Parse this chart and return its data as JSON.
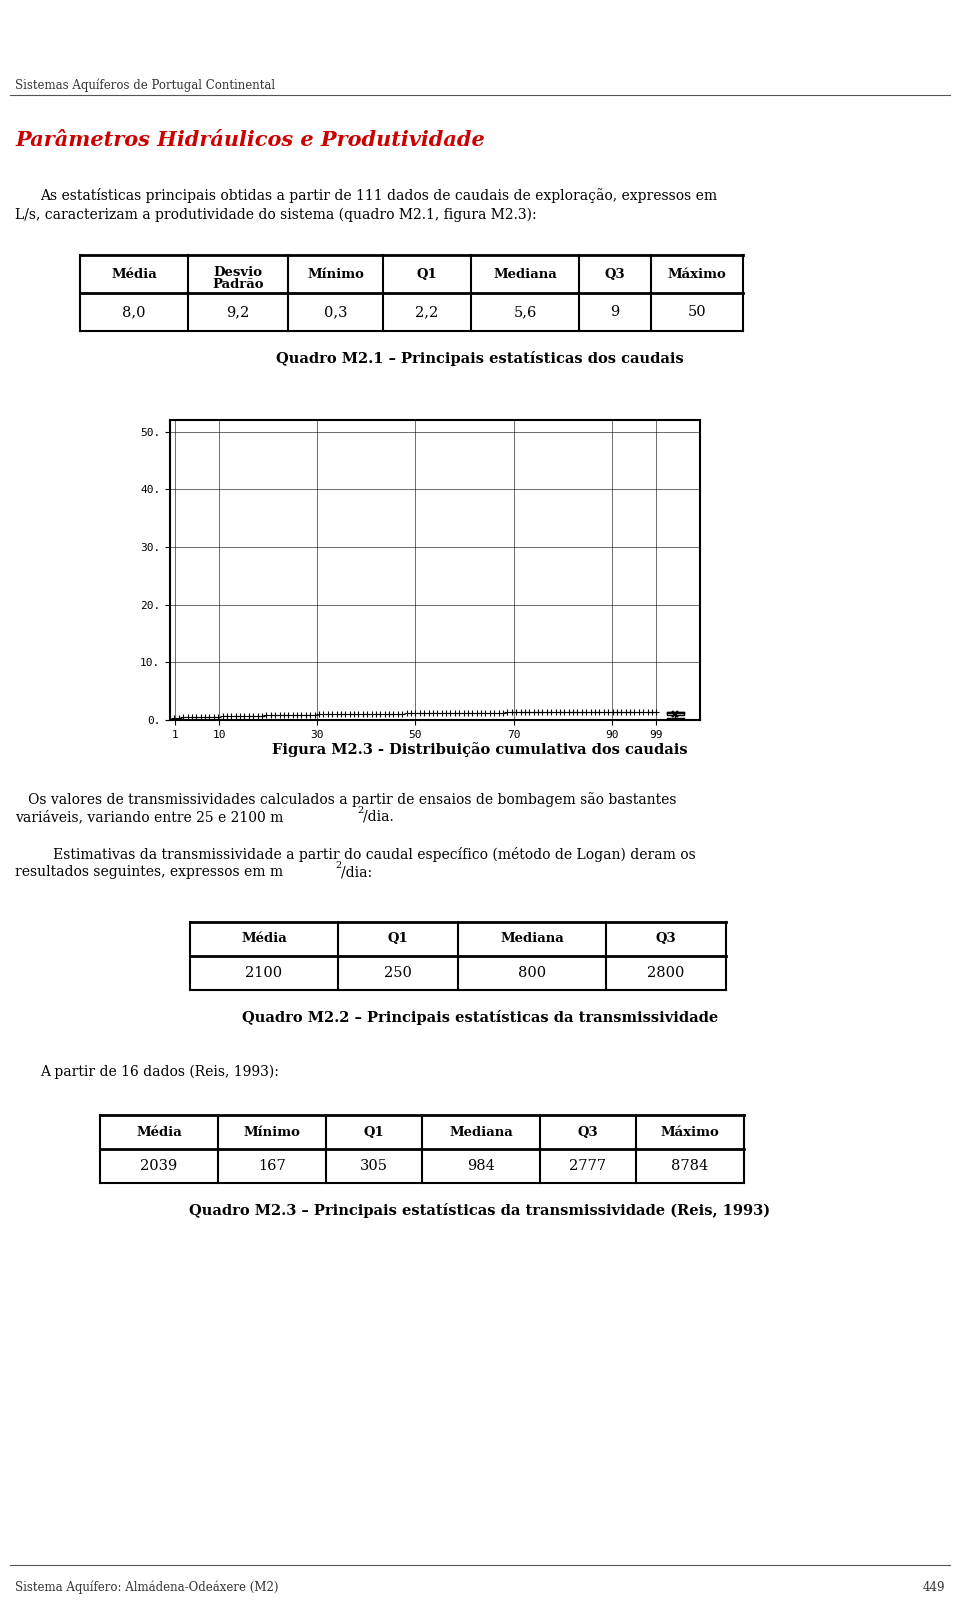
{
  "page_header": "Sistemas Aquíferos de Portugal Continental",
  "page_footer": "Sistema Aquífero: Almádena-Odeáxere (M2)",
  "page_number": "449",
  "title": "Parâmetros Hidráulicos e Produtividade",
  "intro_text1": "As estatísticas principais obtidas a partir de 111 dados de caudais de exploração, expressos em",
  "intro_text2": "L/s, caracterizam a produtividade do sistema (quadro M2.1, figura M2.3):",
  "table1_caption": "Quadro M2.1 – Principais estatísticas dos caudais",
  "table1_headers": [
    "Média",
    "Desvio\nPadrão",
    "Mínimo",
    "Q1",
    "Mediana",
    "Q3",
    "Máximo"
  ],
  "table1_values": [
    "8,0",
    "9,2",
    "0,3",
    "2,2",
    "5,6",
    "9",
    "50"
  ],
  "figure_caption": "Figura M2.3 - Distribuição cumulativa dos caudais",
  "text2_line1": "   Os valores de transmissividades calculados a partir de ensaios de bombagem são bastantes",
  "text2_line2": "variáveis, variando entre 25 e 2100 m",
  "text2_super": "2",
  "text2_end": "/dia.",
  "text3_line1": "   Estimativas da transmissividade a partir do caudal específico (método de Logan) deram os",
  "text3_line2": "resultados seguintes, expressos em m",
  "text3_super": "2",
  "text3_end": "/dia:",
  "table2_caption": "Quadro M2.2 – Principais estatísticas da transmissividade",
  "table2_headers": [
    "Média",
    "Q1",
    "Mediana",
    "Q3"
  ],
  "table2_values": [
    "2100",
    "250",
    "800",
    "2800"
  ],
  "text4": "A partir de 16 dados (Reis, 1993):",
  "table3_caption": "Quadro M2.3 – Principais estatísticas da transmissividade (Reis, 1993)",
  "table3_headers": [
    "Média",
    "Mínimo",
    "Q1",
    "Mediana",
    "Q3",
    "Máximo"
  ],
  "table3_values": [
    "2039",
    "167",
    "305",
    "984",
    "2777",
    "8784"
  ],
  "bg_color": "#ffffff",
  "text_color": "#000000",
  "title_color": "#cc0000"
}
